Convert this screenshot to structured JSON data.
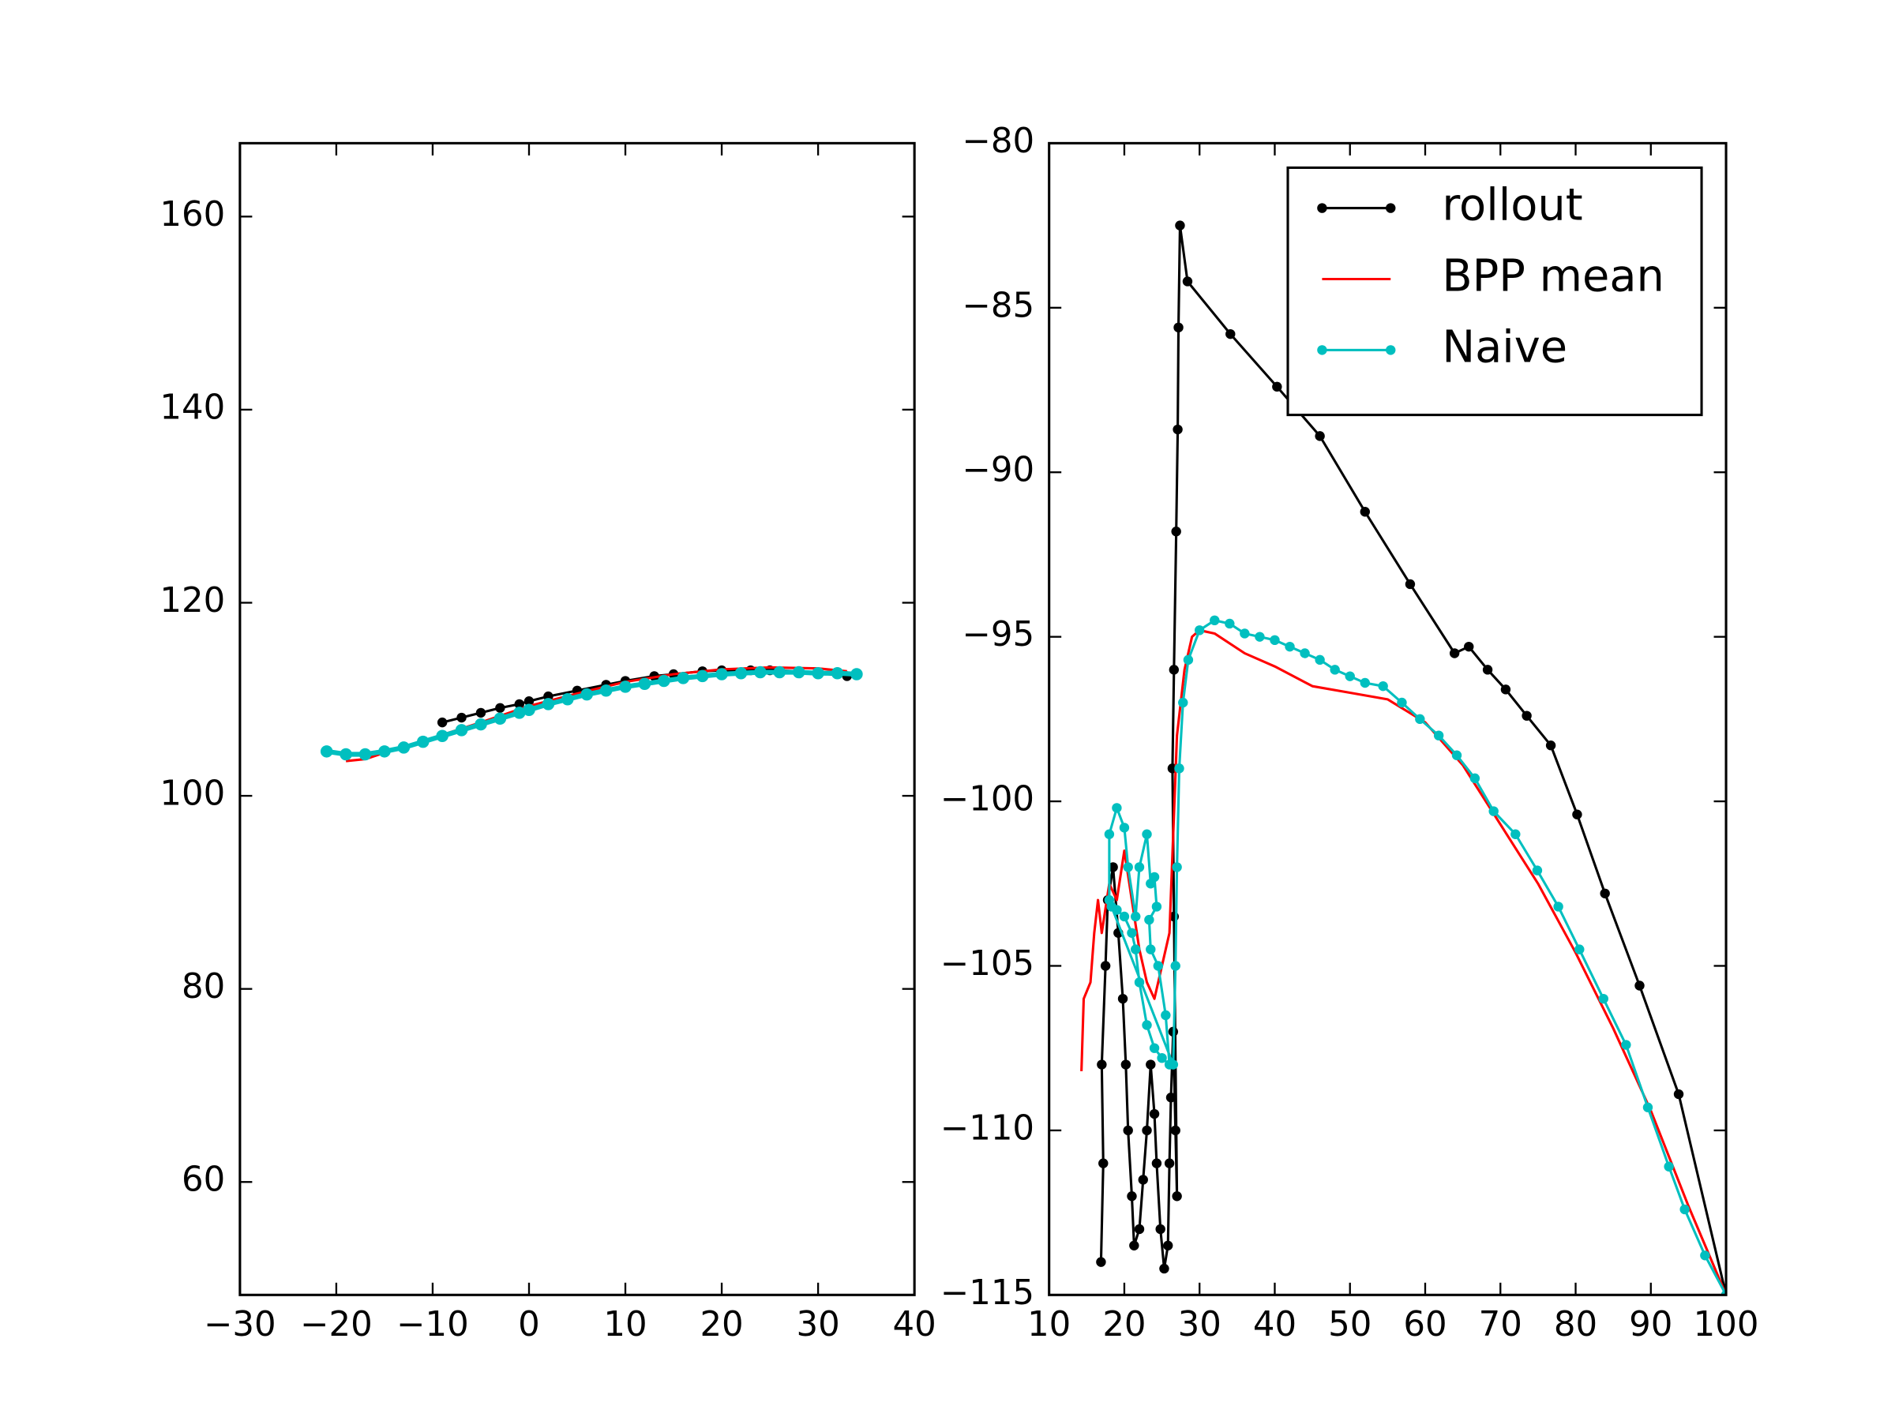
{
  "chart_data": [
    {
      "type": "line",
      "xlim": [
        -30,
        40
      ],
      "ylim": [
        48.3,
        167.6
      ],
      "xticks": [
        {
          "value": -30,
          "label": "−30"
        },
        {
          "value": -20,
          "label": "−20"
        },
        {
          "value": -10,
          "label": "−10"
        },
        0,
        10,
        20,
        30,
        40
      ],
      "yticks": [
        60,
        80,
        100,
        120,
        140,
        160
      ],
      "series": [
        {
          "color": "#000000",
          "marker": true,
          "linewidth": 2,
          "x": [
            -9,
            -7,
            -5,
            -3,
            -1,
            0,
            2,
            5,
            8,
            10,
            13,
            15,
            18,
            20,
            23,
            25,
            28,
            30,
            33
          ],
          "values": [
            107.6,
            108.1,
            108.6,
            109.1,
            109.5,
            109.8,
            110.3,
            110.9,
            111.5,
            111.9,
            112.4,
            112.6,
            112.9,
            113.0,
            113.0,
            113.0,
            112.9,
            112.7,
            112.4
          ]
        },
        {
          "color": "#ff0000",
          "marker": false,
          "linewidth": 2,
          "x": [
            -19,
            -17,
            -14,
            -10,
            -5,
            0,
            5,
            10,
            15,
            20,
            25,
            30,
            33
          ],
          "values": [
            103.6,
            103.8,
            104.8,
            106.0,
            107.6,
            109.3,
            110.6,
            111.8,
            112.6,
            113.1,
            113.3,
            113.2,
            112.9
          ]
        },
        {
          "color": "#00bfbf",
          "marker": true,
          "linewidth": 4,
          "x": [
            -21,
            -19,
            -17,
            -15,
            -13,
            -11,
            -9,
            -7,
            -5,
            -3,
            -1,
            0,
            2,
            4,
            6,
            8,
            10,
            12,
            14,
            16,
            18,
            20,
            22,
            24,
            26,
            28,
            30,
            32,
            34
          ],
          "values": [
            104.6,
            104.3,
            104.3,
            104.6,
            105.0,
            105.6,
            106.2,
            106.8,
            107.4,
            108.0,
            108.6,
            108.9,
            109.5,
            110.0,
            110.5,
            110.9,
            111.3,
            111.6,
            111.9,
            112.2,
            112.4,
            112.6,
            112.7,
            112.8,
            112.8,
            112.8,
            112.7,
            112.7,
            112.6
          ]
        }
      ]
    },
    {
      "type": "line",
      "xlim": [
        10,
        100
      ],
      "ylim": [
        -115,
        -80
      ],
      "xticks": [
        10,
        20,
        30,
        40,
        50,
        60,
        70,
        80,
        90,
        100
      ],
      "yticks": [
        {
          "value": -115,
          "label": "−115"
        },
        {
          "value": -110,
          "label": "−110"
        },
        {
          "value": -105,
          "label": "−105"
        },
        {
          "value": -100,
          "label": "−100"
        },
        {
          "value": -95,
          "label": "−95"
        },
        {
          "value": -90,
          "label": "−90"
        },
        {
          "value": -85,
          "label": "−85"
        },
        {
          "value": -80,
          "label": "−80"
        }
      ],
      "legend": "upper right",
      "series": [
        {
          "name": "rollout",
          "color": "#000000",
          "marker": true,
          "linewidth": 2,
          "x": [
            16.9,
            17.2,
            17.0,
            17.5,
            17.8,
            18.5,
            19.2,
            19.8,
            20.2,
            20.5,
            21.0,
            21.3,
            22.0,
            22.5,
            23.0,
            23.5,
            24.0,
            24.3,
            24.8,
            25.3,
            25.8,
            26.0,
            26.2,
            26.5,
            26.8,
            27.0,
            26.6,
            26.4,
            26.6,
            26.9,
            27.1,
            27.2,
            27.4,
            28.4,
            34.1,
            40.3,
            46.0,
            52.0,
            58.0,
            63.9,
            65.8,
            68.3,
            70.7,
            73.5,
            76.7,
            80.2,
            83.9,
            88.5,
            93.7,
            100
          ],
          "values": [
            -114,
            -111,
            -108,
            -105,
            -103,
            -102,
            -104,
            -106,
            -108,
            -110,
            -112,
            -113.5,
            -113,
            -111.5,
            -110,
            -108,
            -109.5,
            -111,
            -113,
            -114.2,
            -113.5,
            -111,
            -109,
            -107,
            -110,
            -112,
            -103.5,
            -99,
            -96,
            -91.8,
            -88.7,
            -85.6,
            -82.5,
            -84.2,
            -85.8,
            -87.4,
            -88.9,
            -91.2,
            -93.4,
            -95.5,
            -95.3,
            -96.0,
            -96.6,
            -97.4,
            -98.3,
            -100.4,
            -102.8,
            -105.6,
            -108.9,
            -115
          ]
        },
        {
          "name": "BPP mean",
          "color": "#ff0000",
          "marker": false,
          "linewidth": 2,
          "x": [
            14.3,
            14.6,
            15.5,
            16,
            16.5,
            17,
            18,
            19,
            20,
            21,
            22,
            23,
            24,
            25,
            26,
            26.5,
            27,
            28,
            29,
            30,
            32,
            36,
            40,
            45,
            50,
            55,
            60,
            65,
            70,
            75,
            80,
            85,
            90,
            95,
            100
          ],
          "values": [
            -108.2,
            -106,
            -105.5,
            -104,
            -103,
            -104,
            -102.5,
            -103,
            -101.5,
            -103,
            -104.5,
            -105.5,
            -106,
            -105,
            -104,
            -101,
            -98,
            -96,
            -95,
            -94.8,
            -94.9,
            -95.5,
            -95.9,
            -96.5,
            -96.7,
            -96.9,
            -97.6,
            -98.9,
            -100.7,
            -102.5,
            -104.6,
            -106.9,
            -109.4,
            -112.3,
            -115
          ]
        },
        {
          "name": "Naive",
          "color": "#00bfbf",
          "marker": true,
          "linewidth": 2,
          "x": [
            18,
            18,
            19,
            20,
            20.5,
            21.5,
            22,
            23,
            23.5,
            24,
            24.3,
            23.3,
            23.5,
            24.5,
            25.5,
            26,
            25,
            24,
            23,
            22,
            21.5,
            21,
            20,
            19,
            18.3,
            26.5,
            26.8,
            27,
            27.3,
            27.8,
            28.5,
            30,
            32,
            34,
            36,
            38,
            40,
            42,
            44,
            46,
            48,
            50,
            52,
            54.4,
            56.9,
            59.3,
            61.8,
            64.2,
            66.6,
            69.1,
            72,
            74.9,
            77.7,
            80.5,
            83.7,
            86.7,
            89.6,
            92.4,
            94.5,
            97.2,
            100
          ],
          "values": [
            -103,
            -101,
            -100.2,
            -100.8,
            -102,
            -103.5,
            -102,
            -101,
            -102.5,
            -102.3,
            -103.2,
            -103.6,
            -104.5,
            -105,
            -106.5,
            -108,
            -107.8,
            -107.5,
            -106.8,
            -105.5,
            -104.5,
            -104,
            -103.5,
            -103.3,
            -103.2,
            -108,
            -105,
            -102,
            -99,
            -97,
            -95.7,
            -94.8,
            -94.5,
            -94.6,
            -94.9,
            -95.0,
            -95.1,
            -95.3,
            -95.5,
            -95.7,
            -96.0,
            -96.2,
            -96.4,
            -96.5,
            -97.0,
            -97.5,
            -98.0,
            -98.6,
            -99.3,
            -100.3,
            -101,
            -102.1,
            -103.2,
            -104.5,
            -106,
            -107.4,
            -109.3,
            -111.1,
            -112.4,
            -113.8,
            -115
          ]
        }
      ]
    }
  ]
}
